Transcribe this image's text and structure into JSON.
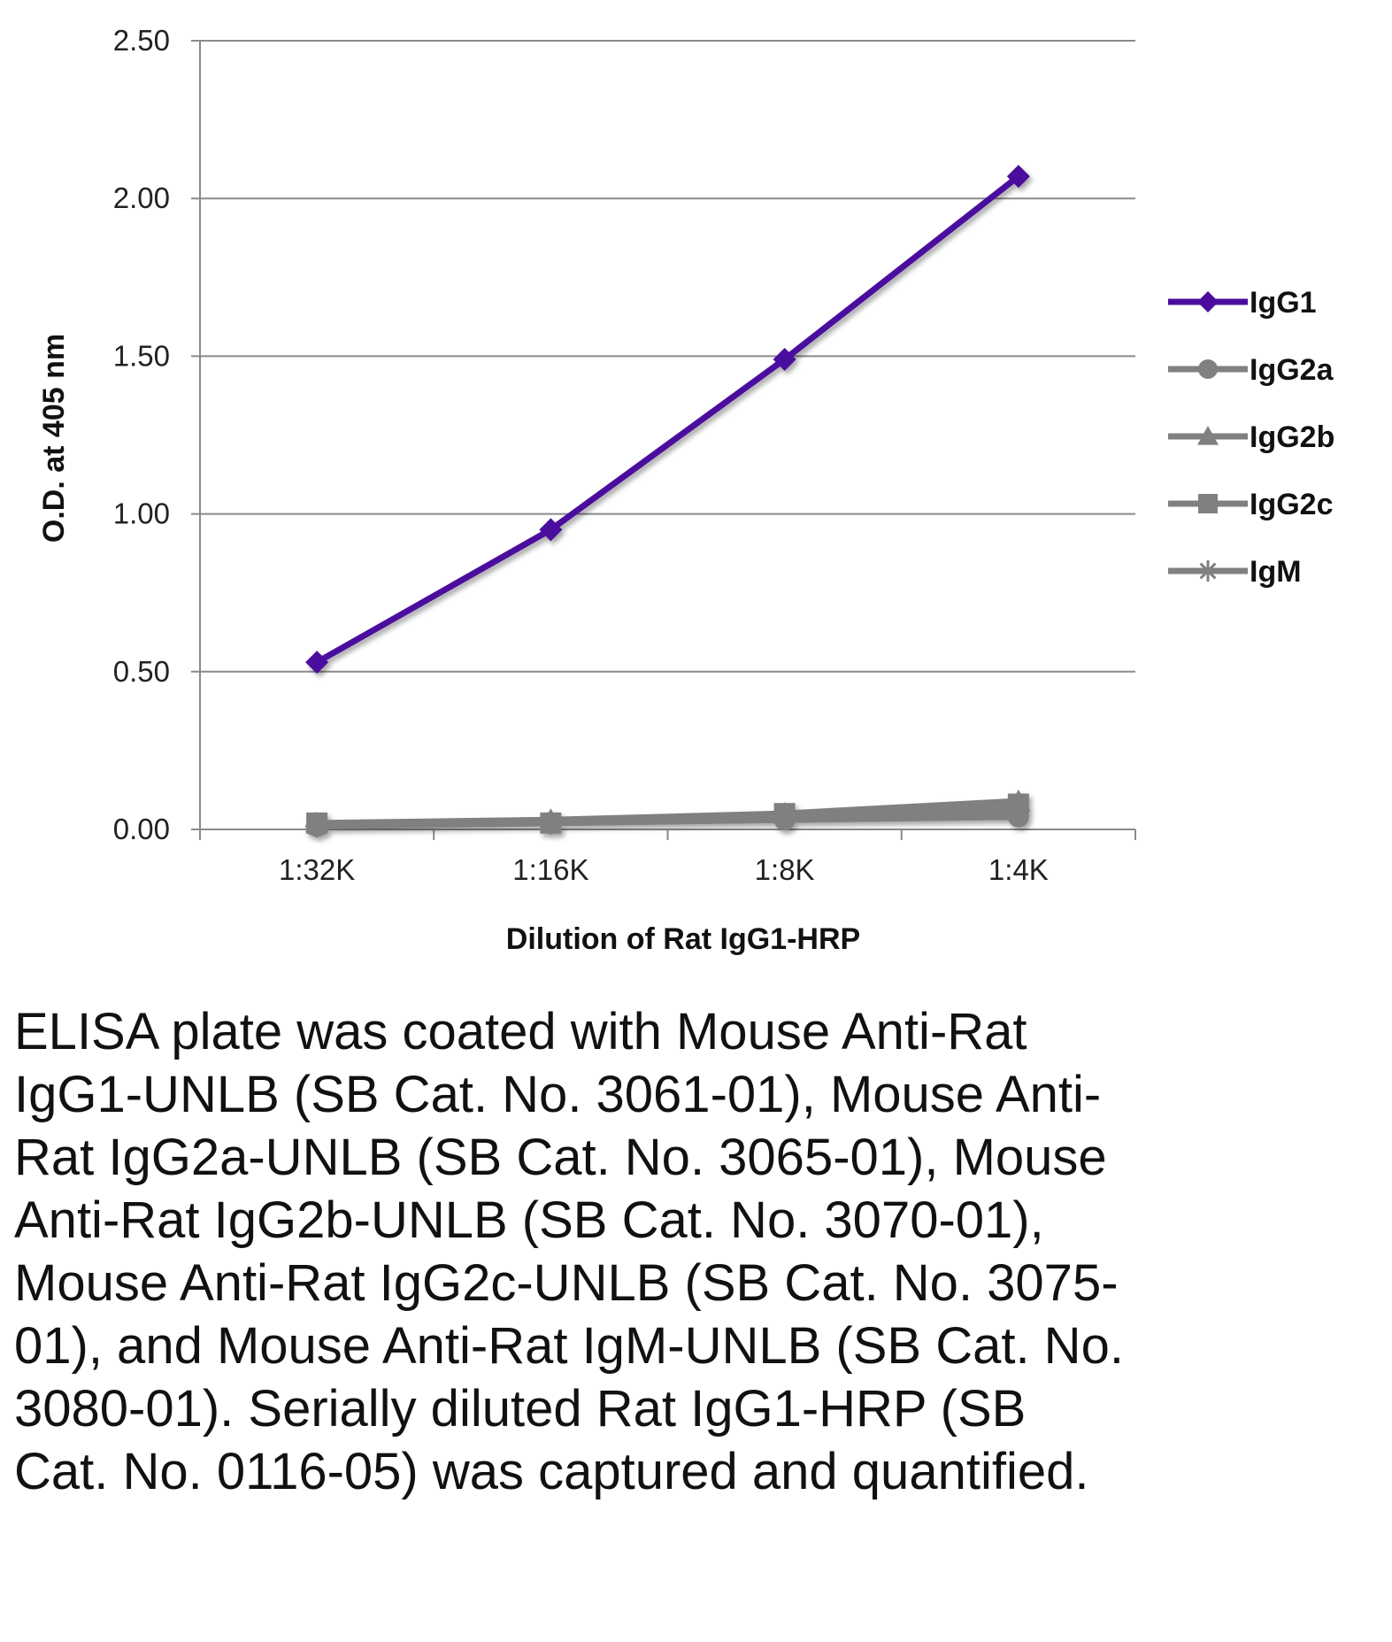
{
  "chart_data": {
    "type": "line",
    "title": "",
    "xlabel": "Dilution of Rat IgG1-HRP",
    "ylabel": "O.D. at 405 nm",
    "categories": [
      "1:32K",
      "1:16K",
      "1:8K",
      "1:4K"
    ],
    "ylim": [
      0,
      2.5
    ],
    "yticks": [
      "0.00",
      "0.50",
      "1.00",
      "1.50",
      "2.00",
      "2.50"
    ],
    "grid": true,
    "legend_position": "right",
    "series": [
      {
        "name": "IgG1",
        "marker": "diamond",
        "color": "#4B0C9E",
        "values": [
          0.53,
          0.95,
          1.49,
          2.07
        ]
      },
      {
        "name": "IgG2a",
        "marker": "circle",
        "color": "#808080",
        "values": [
          0.01,
          0.02,
          0.03,
          0.04
        ]
      },
      {
        "name": "IgG2b",
        "marker": "triangle",
        "color": "#808080",
        "values": [
          0.02,
          0.03,
          0.05,
          0.09
        ]
      },
      {
        "name": "IgG2c",
        "marker": "square",
        "color": "#808080",
        "values": [
          0.02,
          0.02,
          0.05,
          0.08
        ]
      },
      {
        "name": "IgM",
        "marker": "star",
        "color": "#808080",
        "values": [
          0.01,
          0.02,
          0.04,
          0.06
        ]
      }
    ]
  },
  "caption": "ELISA plate was coated with Mouse Anti-Rat IgG1-UNLB (SB Cat. No. 3061-01), Mouse Anti-Rat IgG2a-UNLB (SB Cat. No. 3065-01), Mouse Anti-Rat IgG2b-UNLB (SB Cat. No. 3070-01), Mouse Anti-Rat IgG2c-UNLB (SB Cat. No. 3075-01), and Mouse Anti-Rat IgM-UNLB (SB Cat. No. 3080-01).  Serially diluted Rat IgG1-HRP (SB Cat. No. 0116-05) was captured and quantified."
}
